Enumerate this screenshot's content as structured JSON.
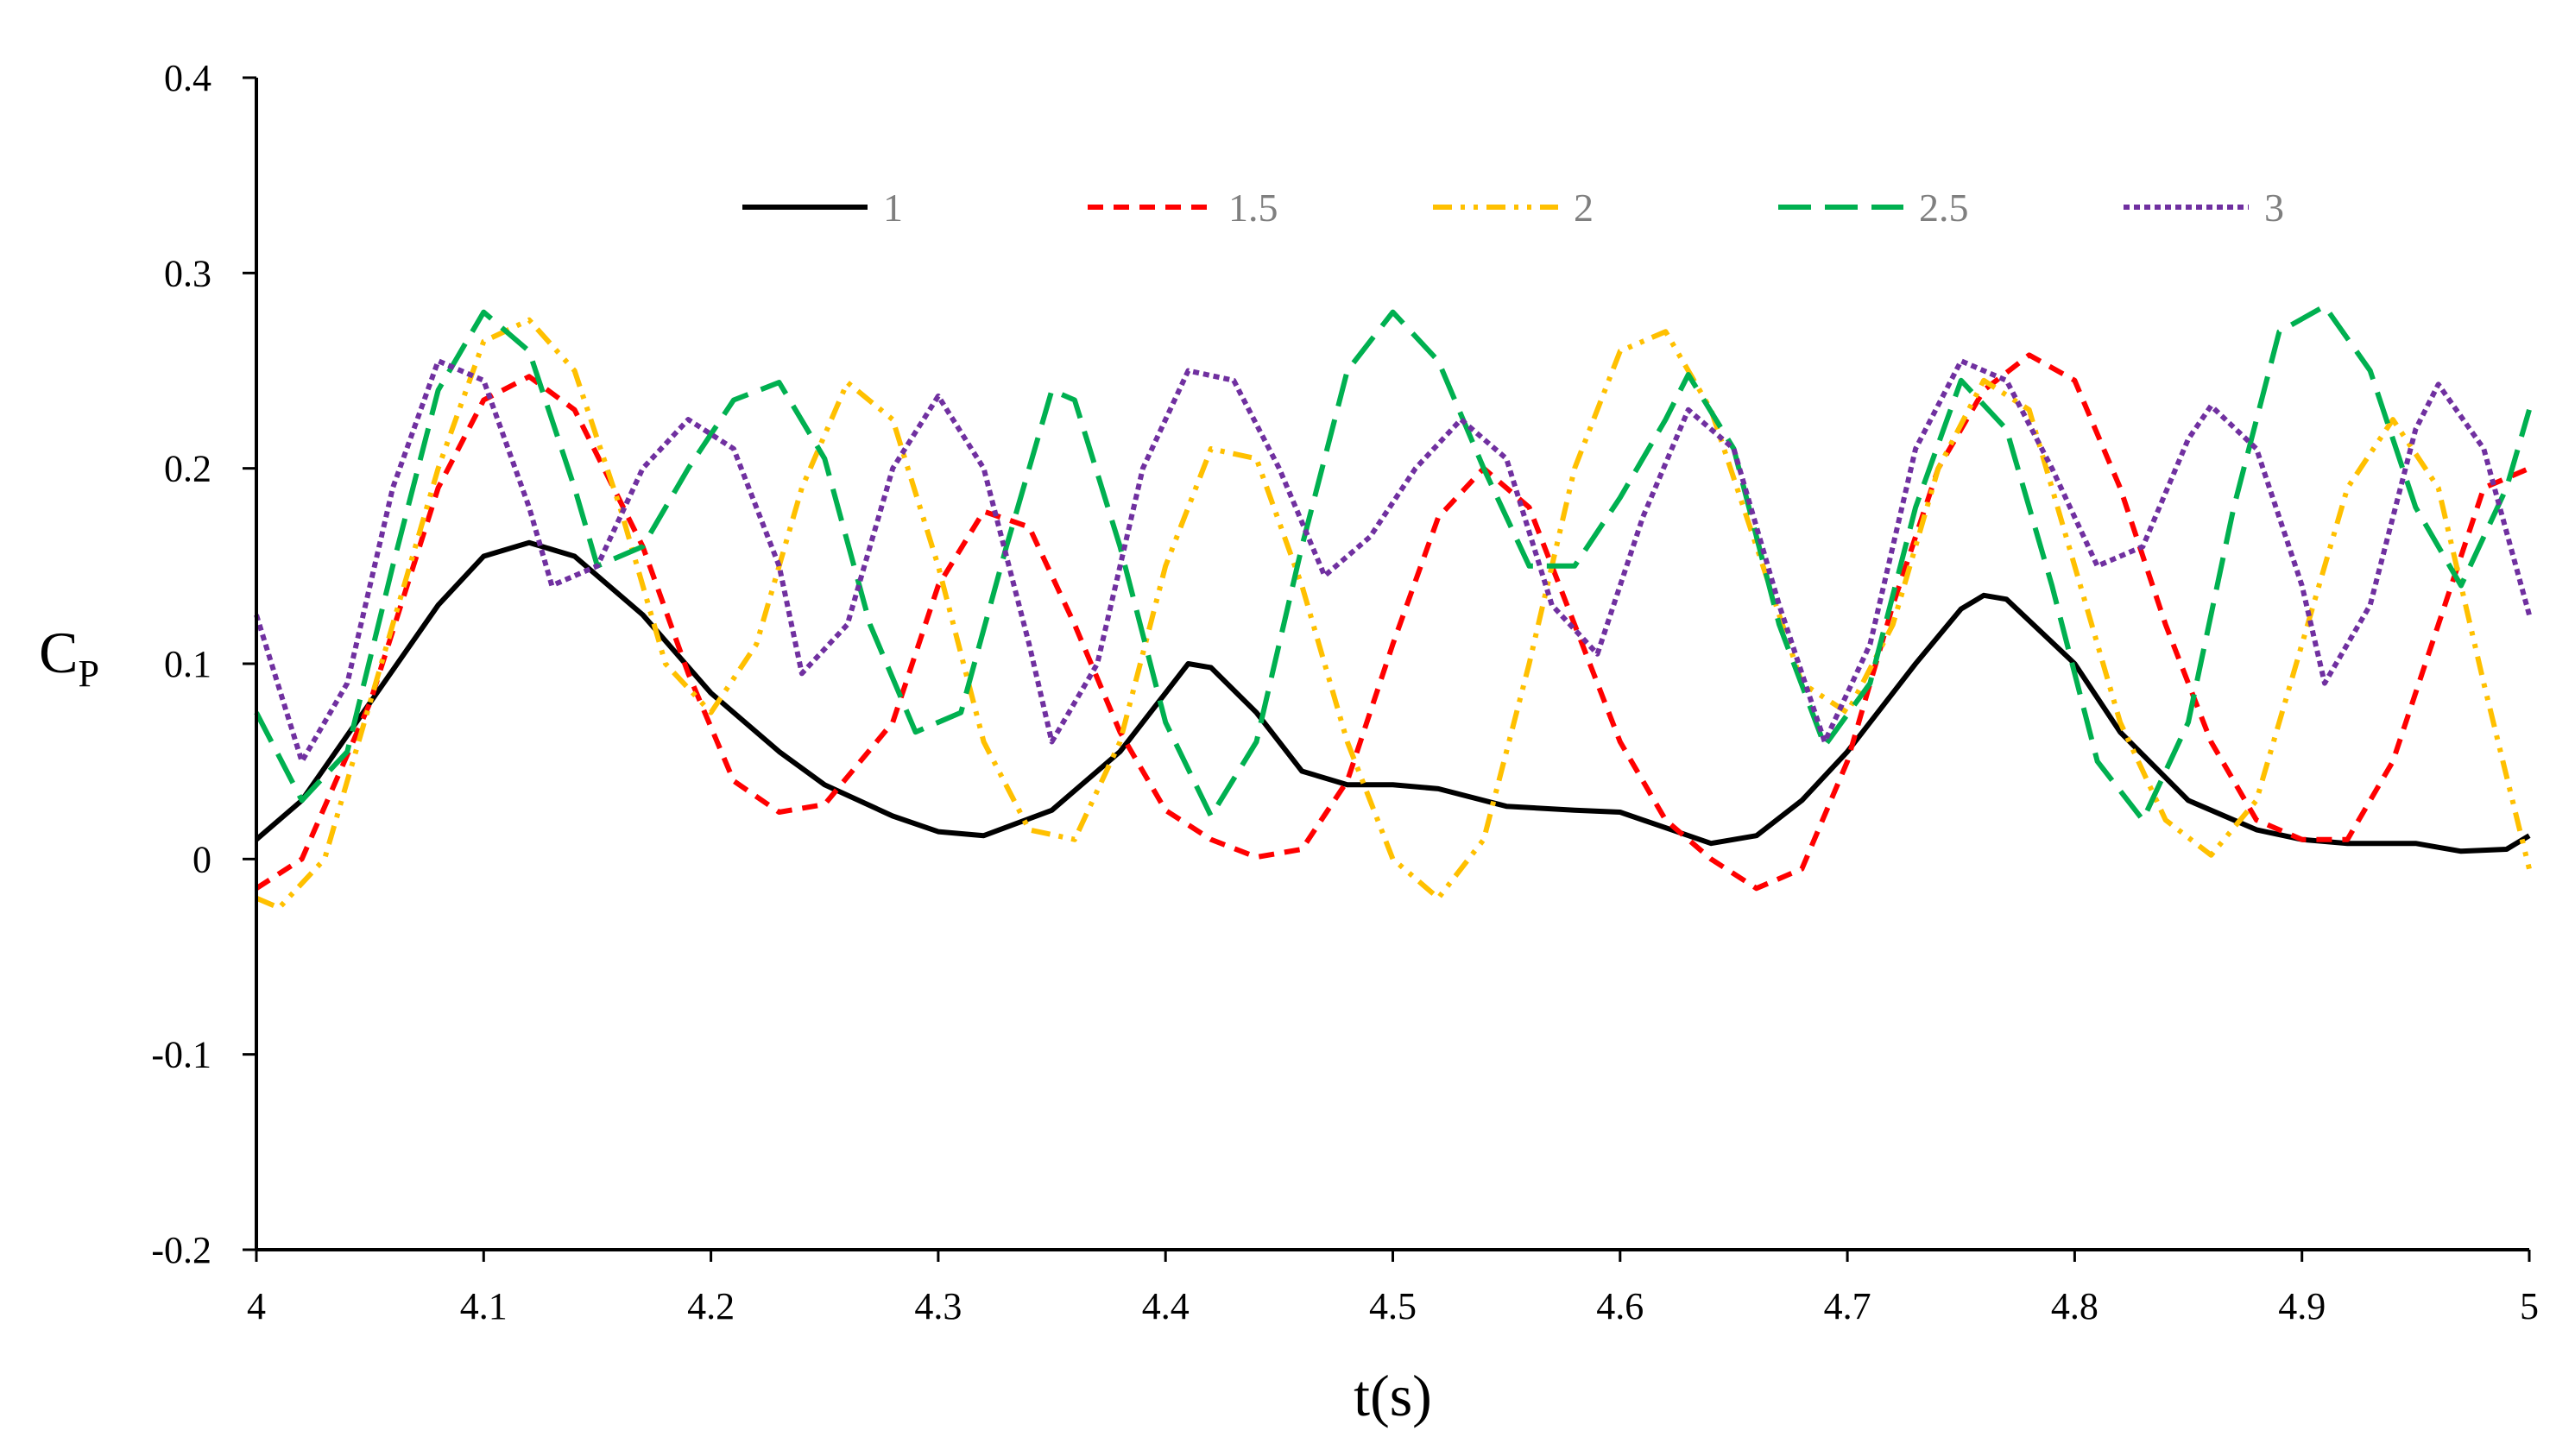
{
  "chart_data": {
    "type": "line",
    "title": "",
    "xlabel": "t(s)",
    "ylabel": "C",
    "ylabel_subscript": "P",
    "xlim": [
      4,
      5
    ],
    "ylim": [
      -0.2,
      0.4
    ],
    "x_ticks": [
      {
        "value": 4,
        "label": "4"
      },
      {
        "value": 4.1,
        "label": "4.1"
      },
      {
        "value": 4.2,
        "label": "4.2"
      },
      {
        "value": 4.3,
        "label": "4.3"
      },
      {
        "value": 4.4,
        "label": "4.4"
      },
      {
        "value": 4.5,
        "label": "4.5"
      },
      {
        "value": 4.6,
        "label": "4.6"
      },
      {
        "value": 4.7,
        "label": "4.7"
      },
      {
        "value": 4.8,
        "label": "4.8"
      },
      {
        "value": 4.9,
        "label": "4.9"
      },
      {
        "value": 5,
        "label": "5"
      }
    ],
    "y_ticks": [
      {
        "value": -0.2,
        "label": "-0.2"
      },
      {
        "value": -0.1,
        "label": "-0.1"
      },
      {
        "value": 0,
        "label": "0"
      },
      {
        "value": 0.1,
        "label": "0.1"
      },
      {
        "value": 0.2,
        "label": "0.2"
      },
      {
        "value": 0.3,
        "label": "0.3"
      },
      {
        "value": 0.4,
        "label": "0.4"
      }
    ],
    "grid": false,
    "legend_position": "top",
    "series": [
      {
        "name": "1",
        "color": "#000000",
        "dash": "solid",
        "points": [
          [
            4.0,
            0.01
          ],
          [
            4.02,
            0.03
          ],
          [
            4.05,
            0.08
          ],
          [
            4.08,
            0.13
          ],
          [
            4.1,
            0.155
          ],
          [
            4.12,
            0.162
          ],
          [
            4.14,
            0.155
          ],
          [
            4.17,
            0.125
          ],
          [
            4.2,
            0.085
          ],
          [
            4.23,
            0.055
          ],
          [
            4.25,
            0.038
          ],
          [
            4.28,
            0.022
          ],
          [
            4.3,
            0.014
          ],
          [
            4.32,
            0.012
          ],
          [
            4.35,
            0.025
          ],
          [
            4.38,
            0.055
          ],
          [
            4.4,
            0.085
          ],
          [
            4.41,
            0.1
          ],
          [
            4.42,
            0.098
          ],
          [
            4.44,
            0.075
          ],
          [
            4.46,
            0.045
          ],
          [
            4.48,
            0.038
          ],
          [
            4.5,
            0.038
          ],
          [
            4.52,
            0.036
          ],
          [
            4.55,
            0.027
          ],
          [
            4.58,
            0.025
          ],
          [
            4.6,
            0.024
          ],
          [
            4.62,
            0.016
          ],
          [
            4.64,
            0.008
          ],
          [
            4.66,
            0.012
          ],
          [
            4.68,
            0.03
          ],
          [
            4.7,
            0.055
          ],
          [
            4.73,
            0.1
          ],
          [
            4.75,
            0.128
          ],
          [
            4.76,
            0.135
          ],
          [
            4.77,
            0.133
          ],
          [
            4.8,
            0.1
          ],
          [
            4.82,
            0.065
          ],
          [
            4.85,
            0.03
          ],
          [
            4.88,
            0.015
          ],
          [
            4.9,
            0.01
          ],
          [
            4.92,
            0.008
          ],
          [
            4.95,
            0.008
          ],
          [
            4.97,
            0.004
          ],
          [
            4.99,
            0.005
          ],
          [
            5.0,
            0.012
          ]
        ]
      },
      {
        "name": "1.5",
        "color": "#ff0000",
        "dash": "short-dash",
        "points": [
          [
            4.0,
            -0.015
          ],
          [
            4.02,
            0.0
          ],
          [
            4.05,
            0.08
          ],
          [
            4.08,
            0.19
          ],
          [
            4.1,
            0.235
          ],
          [
            4.12,
            0.247
          ],
          [
            4.14,
            0.23
          ],
          [
            4.17,
            0.16
          ],
          [
            4.19,
            0.095
          ],
          [
            4.21,
            0.04
          ],
          [
            4.23,
            0.024
          ],
          [
            4.25,
            0.028
          ],
          [
            4.28,
            0.07
          ],
          [
            4.3,
            0.14
          ],
          [
            4.32,
            0.178
          ],
          [
            4.34,
            0.17
          ],
          [
            4.36,
            0.12
          ],
          [
            4.38,
            0.065
          ],
          [
            4.4,
            0.025
          ],
          [
            4.42,
            0.01
          ],
          [
            4.44,
            0.001
          ],
          [
            4.46,
            0.005
          ],
          [
            4.48,
            0.04
          ],
          [
            4.5,
            0.11
          ],
          [
            4.52,
            0.175
          ],
          [
            4.54,
            0.2
          ],
          [
            4.56,
            0.18
          ],
          [
            4.58,
            0.12
          ],
          [
            4.6,
            0.06
          ],
          [
            4.62,
            0.02
          ],
          [
            4.64,
            0.0
          ],
          [
            4.66,
            -0.015
          ],
          [
            4.68,
            -0.005
          ],
          [
            4.7,
            0.05
          ],
          [
            4.72,
            0.13
          ],
          [
            4.74,
            0.2
          ],
          [
            4.76,
            0.24
          ],
          [
            4.78,
            0.258
          ],
          [
            4.8,
            0.245
          ],
          [
            4.82,
            0.19
          ],
          [
            4.84,
            0.12
          ],
          [
            4.86,
            0.06
          ],
          [
            4.88,
            0.02
          ],
          [
            4.9,
            0.01
          ],
          [
            4.92,
            0.01
          ],
          [
            4.94,
            0.05
          ],
          [
            4.96,
            0.12
          ],
          [
            4.98,
            0.19
          ],
          [
            5.0,
            0.2
          ]
        ]
      },
      {
        "name": "2",
        "color": "#ffc000",
        "dash": "dash-dot-dot",
        "points": [
          [
            4.0,
            -0.02
          ],
          [
            4.01,
            -0.025
          ],
          [
            4.03,
            0.0
          ],
          [
            4.05,
            0.08
          ],
          [
            4.08,
            0.2
          ],
          [
            4.1,
            0.265
          ],
          [
            4.12,
            0.276
          ],
          [
            4.14,
            0.25
          ],
          [
            4.16,
            0.18
          ],
          [
            4.18,
            0.1
          ],
          [
            4.2,
            0.075
          ],
          [
            4.22,
            0.11
          ],
          [
            4.24,
            0.19
          ],
          [
            4.26,
            0.244
          ],
          [
            4.28,
            0.225
          ],
          [
            4.3,
            0.15
          ],
          [
            4.32,
            0.06
          ],
          [
            4.34,
            0.015
          ],
          [
            4.36,
            0.01
          ],
          [
            4.38,
            0.06
          ],
          [
            4.4,
            0.15
          ],
          [
            4.42,
            0.21
          ],
          [
            4.44,
            0.205
          ],
          [
            4.46,
            0.14
          ],
          [
            4.48,
            0.06
          ],
          [
            4.5,
            0.0
          ],
          [
            4.52,
            -0.02
          ],
          [
            4.54,
            0.01
          ],
          [
            4.56,
            0.1
          ],
          [
            4.58,
            0.2
          ],
          [
            4.6,
            0.26
          ],
          [
            4.62,
            0.27
          ],
          [
            4.64,
            0.23
          ],
          [
            4.66,
            0.16
          ],
          [
            4.68,
            0.09
          ],
          [
            4.7,
            0.075
          ],
          [
            4.72,
            0.12
          ],
          [
            4.74,
            0.2
          ],
          [
            4.76,
            0.245
          ],
          [
            4.78,
            0.23
          ],
          [
            4.8,
            0.15
          ],
          [
            4.82,
            0.07
          ],
          [
            4.84,
            0.02
          ],
          [
            4.86,
            0.002
          ],
          [
            4.88,
            0.03
          ],
          [
            4.9,
            0.11
          ],
          [
            4.92,
            0.19
          ],
          [
            4.94,
            0.225
          ],
          [
            4.96,
            0.19
          ],
          [
            4.98,
            0.09
          ],
          [
            5.0,
            -0.005
          ]
        ]
      },
      {
        "name": "2.5",
        "color": "#00b050",
        "dash": "long-dash",
        "points": [
          [
            4.0,
            0.075
          ],
          [
            4.02,
            0.03
          ],
          [
            4.04,
            0.055
          ],
          [
            4.06,
            0.15
          ],
          [
            4.08,
            0.24
          ],
          [
            4.1,
            0.28
          ],
          [
            4.12,
            0.26
          ],
          [
            4.14,
            0.19
          ],
          [
            4.15,
            0.15
          ],
          [
            4.17,
            0.16
          ],
          [
            4.19,
            0.2
          ],
          [
            4.21,
            0.235
          ],
          [
            4.23,
            0.244
          ],
          [
            4.25,
            0.205
          ],
          [
            4.27,
            0.12
          ],
          [
            4.29,
            0.065
          ],
          [
            4.31,
            0.075
          ],
          [
            4.33,
            0.16
          ],
          [
            4.35,
            0.24
          ],
          [
            4.36,
            0.235
          ],
          [
            4.38,
            0.16
          ],
          [
            4.4,
            0.07
          ],
          [
            4.42,
            0.022
          ],
          [
            4.44,
            0.06
          ],
          [
            4.46,
            0.16
          ],
          [
            4.48,
            0.25
          ],
          [
            4.5,
            0.28
          ],
          [
            4.52,
            0.255
          ],
          [
            4.54,
            0.2
          ],
          [
            4.56,
            0.15
          ],
          [
            4.58,
            0.15
          ],
          [
            4.6,
            0.185
          ],
          [
            4.62,
            0.225
          ],
          [
            4.63,
            0.248
          ],
          [
            4.65,
            0.21
          ],
          [
            4.67,
            0.12
          ],
          [
            4.69,
            0.058
          ],
          [
            4.71,
            0.09
          ],
          [
            4.73,
            0.18
          ],
          [
            4.75,
            0.245
          ],
          [
            4.77,
            0.22
          ],
          [
            4.79,
            0.14
          ],
          [
            4.81,
            0.05
          ],
          [
            4.83,
            0.02
          ],
          [
            4.85,
            0.07
          ],
          [
            4.87,
            0.18
          ],
          [
            4.89,
            0.27
          ],
          [
            4.91,
            0.283
          ],
          [
            4.93,
            0.25
          ],
          [
            4.95,
            0.18
          ],
          [
            4.97,
            0.14
          ],
          [
            4.99,
            0.19
          ],
          [
            5.0,
            0.23
          ]
        ]
      },
      {
        "name": "3",
        "color": "#7030a0",
        "dash": "dotted",
        "points": [
          [
            4.0,
            0.125
          ],
          [
            4.02,
            0.05
          ],
          [
            4.04,
            0.09
          ],
          [
            4.06,
            0.19
          ],
          [
            4.08,
            0.255
          ],
          [
            4.1,
            0.245
          ],
          [
            4.12,
            0.18
          ],
          [
            4.13,
            0.14
          ],
          [
            4.15,
            0.15
          ],
          [
            4.17,
            0.2
          ],
          [
            4.19,
            0.225
          ],
          [
            4.21,
            0.21
          ],
          [
            4.23,
            0.15
          ],
          [
            4.24,
            0.095
          ],
          [
            4.26,
            0.12
          ],
          [
            4.28,
            0.2
          ],
          [
            4.3,
            0.237
          ],
          [
            4.32,
            0.2
          ],
          [
            4.34,
            0.11
          ],
          [
            4.35,
            0.06
          ],
          [
            4.37,
            0.1
          ],
          [
            4.39,
            0.2
          ],
          [
            4.41,
            0.25
          ],
          [
            4.43,
            0.245
          ],
          [
            4.45,
            0.2
          ],
          [
            4.47,
            0.145
          ],
          [
            4.49,
            0.165
          ],
          [
            4.51,
            0.2
          ],
          [
            4.53,
            0.225
          ],
          [
            4.55,
            0.205
          ],
          [
            4.57,
            0.13
          ],
          [
            4.59,
            0.105
          ],
          [
            4.61,
            0.175
          ],
          [
            4.63,
            0.23
          ],
          [
            4.65,
            0.21
          ],
          [
            4.67,
            0.13
          ],
          [
            4.69,
            0.06
          ],
          [
            4.71,
            0.11
          ],
          [
            4.73,
            0.21
          ],
          [
            4.75,
            0.255
          ],
          [
            4.77,
            0.245
          ],
          [
            4.79,
            0.2
          ],
          [
            4.81,
            0.15
          ],
          [
            4.83,
            0.16
          ],
          [
            4.85,
            0.215
          ],
          [
            4.86,
            0.232
          ],
          [
            4.88,
            0.21
          ],
          [
            4.9,
            0.14
          ],
          [
            4.91,
            0.09
          ],
          [
            4.93,
            0.13
          ],
          [
            4.95,
            0.22
          ],
          [
            4.96,
            0.243
          ],
          [
            4.98,
            0.21
          ],
          [
            5.0,
            0.125
          ]
        ]
      }
    ]
  }
}
